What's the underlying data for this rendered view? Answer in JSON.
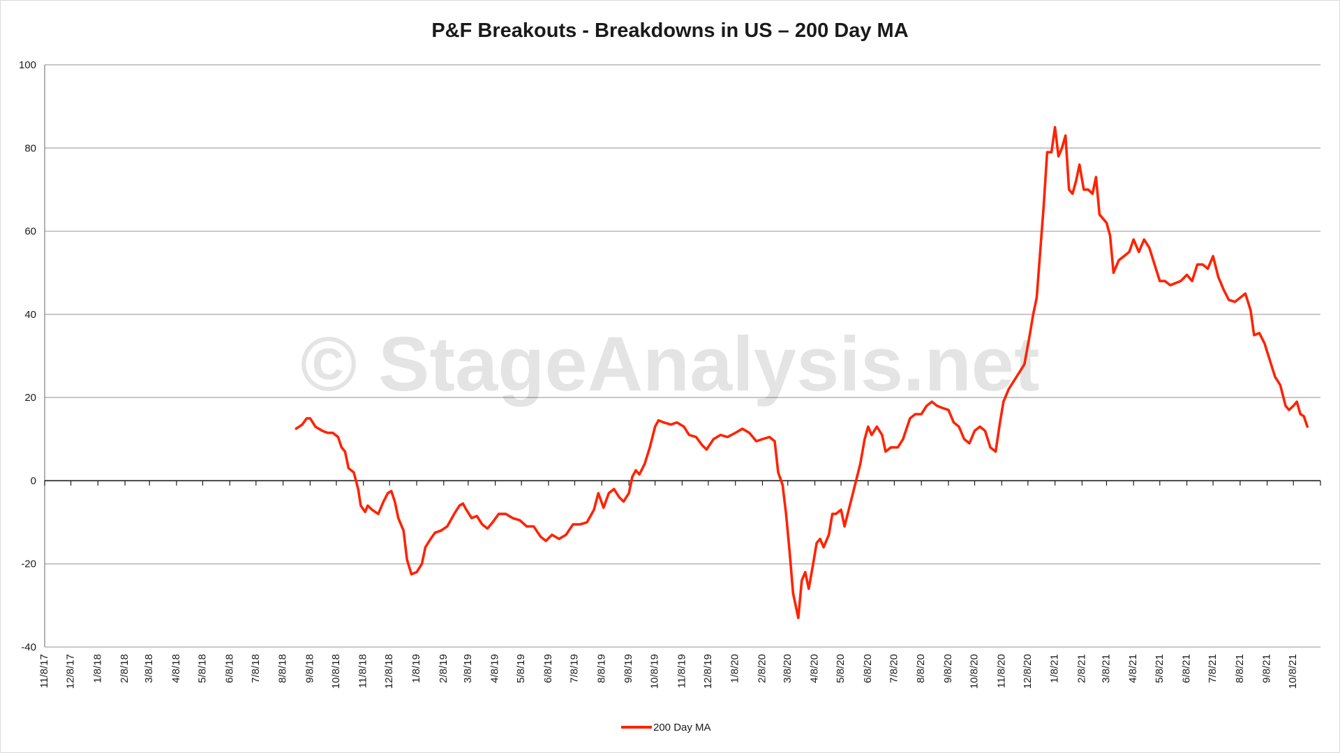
{
  "chart_data": {
    "type": "line",
    "title": "P&F Breakouts - Breakdowns in US – 200 Day MA",
    "watermark": "© StageAnalysis.net",
    "xlabel": "",
    "ylabel": "",
    "ylim": [
      -40,
      100
    ],
    "yticks": [
      "100",
      "80",
      "60",
      "40",
      "20",
      "0",
      "-20",
      "-40"
    ],
    "ytick_values": [
      100,
      80,
      60,
      40,
      20,
      0,
      -20,
      -40
    ],
    "grid": true,
    "legend_position": "bottom",
    "line_color": "#ff2200",
    "x_tick_labels": [
      "11/8/17",
      "12/8/17",
      "1/8/18",
      "2/8/18",
      "3/8/18",
      "4/8/18",
      "5/8/18",
      "6/8/18",
      "7/8/18",
      "8/8/18",
      "9/8/18",
      "10/8/18",
      "11/8/18",
      "12/8/18",
      "1/8/19",
      "2/8/19",
      "3/8/19",
      "4/8/19",
      "5/8/19",
      "6/8/19",
      "7/8/19",
      "8/8/19",
      "9/8/19",
      "10/8/19",
      "11/8/19",
      "12/8/19",
      "1/8/20",
      "2/8/20",
      "3/8/20",
      "4/8/20",
      "5/8/20",
      "6/8/20",
      "7/8/20",
      "8/8/20",
      "9/8/20",
      "10/8/20",
      "11/8/20",
      "12/8/20",
      "1/8/21",
      "2/8/21",
      "3/8/21",
      "4/8/21",
      "5/8/21",
      "6/8/21",
      "7/8/21",
      "8/8/21",
      "9/8/21",
      "10/8/21"
    ],
    "x_start": "11/8/17",
    "x_end": "11/8/21",
    "series": [
      {
        "name": "200 Day MA",
        "points": [
          [
            "8/23/18",
            12.5
          ],
          [
            "8/30/18",
            13.5
          ],
          [
            "9/4/18",
            15
          ],
          [
            "9/8/18",
            15
          ],
          [
            "9/14/18",
            13
          ],
          [
            "9/22/18",
            12
          ],
          [
            "9/28/18",
            11.5
          ],
          [
            "10/4/18",
            11.5
          ],
          [
            "10/10/18",
            10.5
          ],
          [
            "10/14/18",
            8
          ],
          [
            "10/18/18",
            7
          ],
          [
            "10/22/18",
            3
          ],
          [
            "10/28/18",
            2
          ],
          [
            "11/2/18",
            -2
          ],
          [
            "11/5/18",
            -6
          ],
          [
            "11/10/18",
            -7.5
          ],
          [
            "11/13/18",
            -6
          ],
          [
            "11/18/18",
            -7
          ],
          [
            "11/25/18",
            -8
          ],
          [
            "12/1/18",
            -5
          ],
          [
            "12/6/18",
            -3
          ],
          [
            "12/10/18",
            -2.5
          ],
          [
            "12/14/18",
            -5
          ],
          [
            "12/18/18",
            -9
          ],
          [
            "12/24/18",
            -12
          ],
          [
            "12/28/18",
            -19
          ],
          [
            "1/2/19",
            -22.5
          ],
          [
            "1/8/19",
            -22
          ],
          [
            "1/14/19",
            -20
          ],
          [
            "1/18/19",
            -16
          ],
          [
            "1/24/19",
            -14
          ],
          [
            "1/29/19",
            -12.5
          ],
          [
            "2/5/19",
            -12
          ],
          [
            "2/12/19",
            -11
          ],
          [
            "2/20/19",
            -8
          ],
          [
            "2/26/19",
            -6
          ],
          [
            "3/2/19",
            -5.5
          ],
          [
            "3/6/19",
            -7
          ],
          [
            "3/12/19",
            -9
          ],
          [
            "3/18/19",
            -8.5
          ],
          [
            "3/24/19",
            -10.5
          ],
          [
            "3/30/19",
            -11.5
          ],
          [
            "4/5/19",
            -10
          ],
          [
            "4/12/19",
            -8
          ],
          [
            "4/20/19",
            -8
          ],
          [
            "4/28/19",
            -9
          ],
          [
            "5/6/19",
            -9.5
          ],
          [
            "5/14/19",
            -11
          ],
          [
            "5/22/19",
            -11
          ],
          [
            "5/30/19",
            -13.5
          ],
          [
            "6/5/19",
            -14.5
          ],
          [
            "6/12/19",
            -13
          ],
          [
            "6/20/19",
            -14
          ],
          [
            "6/28/19",
            -13
          ],
          [
            "7/6/19",
            -10.5
          ],
          [
            "7/14/19",
            -10.5
          ],
          [
            "7/22/19",
            -10
          ],
          [
            "7/30/19",
            -7
          ],
          [
            "8/4/19",
            -3
          ],
          [
            "8/10/19",
            -6.5
          ],
          [
            "8/16/19",
            -3
          ],
          [
            "8/22/19",
            -2
          ],
          [
            "8/28/19",
            -4
          ],
          [
            "9/2/19",
            -5
          ],
          [
            "9/8/19",
            -3
          ],
          [
            "9/12/19",
            1
          ],
          [
            "9/16/19",
            2.5
          ],
          [
            "9/20/19",
            1.5
          ],
          [
            "9/26/19",
            4
          ],
          [
            "10/2/19",
            8
          ],
          [
            "10/8/19",
            13
          ],
          [
            "10/12/19",
            14.5
          ],
          [
            "10/18/19",
            14
          ],
          [
            "10/26/19",
            13.5
          ],
          [
            "11/2/19",
            14
          ],
          [
            "11/10/19",
            13
          ],
          [
            "11/16/19",
            11
          ],
          [
            "11/24/19",
            10.5
          ],
          [
            "12/1/19",
            8.5
          ],
          [
            "12/6/19",
            7.5
          ],
          [
            "12/14/19",
            10
          ],
          [
            "12/22/19",
            11
          ],
          [
            "12/30/19",
            10.5
          ],
          [
            "1/8/20",
            11.5
          ],
          [
            "1/16/20",
            12.5
          ],
          [
            "1/24/20",
            11.5
          ],
          [
            "2/1/20",
            9.5
          ],
          [
            "2/8/20",
            10
          ],
          [
            "2/16/20",
            10.5
          ],
          [
            "2/22/20",
            9.5
          ],
          [
            "2/26/20",
            2
          ],
          [
            "3/2/20",
            -1
          ],
          [
            "3/6/20",
            -8
          ],
          [
            "3/10/20",
            -17
          ],
          [
            "3/14/20",
            -27
          ],
          [
            "3/18/20",
            -31
          ],
          [
            "3/20/20",
            -33
          ],
          [
            "3/24/20",
            -24
          ],
          [
            "3/28/20",
            -22
          ],
          [
            "4/1/20",
            -26
          ],
          [
            "4/6/20",
            -20
          ],
          [
            "4/10/20",
            -15
          ],
          [
            "4/14/20",
            -14
          ],
          [
            "4/18/20",
            -16
          ],
          [
            "4/24/20",
            -13
          ],
          [
            "4/28/20",
            -8
          ],
          [
            "5/2/20",
            -8
          ],
          [
            "5/8/20",
            -7
          ],
          [
            "5/12/20",
            -11
          ],
          [
            "5/18/20",
            -6
          ],
          [
            "5/24/20",
            -1
          ],
          [
            "5/30/20",
            4
          ],
          [
            "6/4/20",
            10
          ],
          [
            "6/8/20",
            13
          ],
          [
            "6/12/20",
            11
          ],
          [
            "6/18/20",
            13
          ],
          [
            "6/24/20",
            11
          ],
          [
            "6/28/20",
            7
          ],
          [
            "7/4/20",
            8
          ],
          [
            "7/12/20",
            8
          ],
          [
            "7/18/20",
            10
          ],
          [
            "7/26/20",
            15
          ],
          [
            "8/1/20",
            16
          ],
          [
            "8/8/20",
            16
          ],
          [
            "8/14/20",
            18
          ],
          [
            "8/20/20",
            19
          ],
          [
            "8/26/20",
            18
          ],
          [
            "9/1/20",
            17.5
          ],
          [
            "9/8/20",
            17
          ],
          [
            "9/14/20",
            14
          ],
          [
            "9/20/20",
            13
          ],
          [
            "9/26/20",
            10
          ],
          [
            "10/2/20",
            9
          ],
          [
            "10/8/20",
            12
          ],
          [
            "10/14/20",
            13
          ],
          [
            "10/20/20",
            12
          ],
          [
            "10/26/20",
            8
          ],
          [
            "11/1/20",
            7
          ],
          [
            "11/6/20",
            14
          ],
          [
            "11/10/20",
            19
          ],
          [
            "11/16/20",
            22
          ],
          [
            "11/22/20",
            24
          ],
          [
            "11/28/20",
            26
          ],
          [
            "12/4/20",
            28
          ],
          [
            "12/10/20",
            35
          ],
          [
            "12/14/20",
            40
          ],
          [
            "12/18/20",
            44
          ],
          [
            "12/22/20",
            55
          ],
          [
            "12/26/20",
            66
          ],
          [
            "12/30/20",
            79
          ],
          [
            "1/4/21",
            79
          ],
          [
            "1/8/21",
            85
          ],
          [
            "1/12/21",
            78
          ],
          [
            "1/16/21",
            80
          ],
          [
            "1/20/21",
            83
          ],
          [
            "1/24/21",
            70
          ],
          [
            "1/28/21",
            69
          ],
          [
            "2/1/21",
            72
          ],
          [
            "2/5/21",
            76
          ],
          [
            "2/10/21",
            70
          ],
          [
            "2/15/21",
            70
          ],
          [
            "2/20/21",
            69
          ],
          [
            "2/24/21",
            73
          ],
          [
            "2/28/21",
            64
          ],
          [
            "3/4/21",
            63
          ],
          [
            "3/8/21",
            62
          ],
          [
            "3/12/21",
            59
          ],
          [
            "3/16/21",
            50
          ],
          [
            "3/22/21",
            53
          ],
          [
            "3/28/21",
            54
          ],
          [
            "4/3/21",
            55
          ],
          [
            "4/8/21",
            58
          ],
          [
            "4/14/21",
            55
          ],
          [
            "4/20/21",
            58
          ],
          [
            "4/26/21",
            56
          ],
          [
            "5/2/21",
            52
          ],
          [
            "5/8/21",
            48
          ],
          [
            "5/14/21",
            48
          ],
          [
            "5/20/21",
            47
          ],
          [
            "5/26/21",
            47.5
          ],
          [
            "6/1/21",
            48
          ],
          [
            "6/8/21",
            49.5
          ],
          [
            "6/14/21",
            48
          ],
          [
            "6/20/21",
            52
          ],
          [
            "6/26/21",
            52
          ],
          [
            "7/2/21",
            51
          ],
          [
            "7/8/21",
            54
          ],
          [
            "7/14/21",
            49
          ],
          [
            "7/20/21",
            46
          ],
          [
            "7/26/21",
            43.5
          ],
          [
            "8/2/21",
            43
          ],
          [
            "8/8/21",
            44
          ],
          [
            "8/14/21",
            45
          ],
          [
            "8/20/21",
            41
          ],
          [
            "8/24/21",
            35
          ],
          [
            "8/30/21",
            35.5
          ],
          [
            "9/5/21",
            33
          ],
          [
            "9/11/21",
            29
          ],
          [
            "9/17/21",
            25
          ],
          [
            "9/23/21",
            23
          ],
          [
            "9/29/21",
            18
          ],
          [
            "10/3/21",
            17
          ],
          [
            "10/8/21",
            18
          ],
          [
            "10/12/21",
            19
          ],
          [
            "10/16/21",
            16
          ],
          [
            "10/20/21",
            15.5
          ],
          [
            "10/24/21",
            13
          ]
        ]
      }
    ]
  }
}
